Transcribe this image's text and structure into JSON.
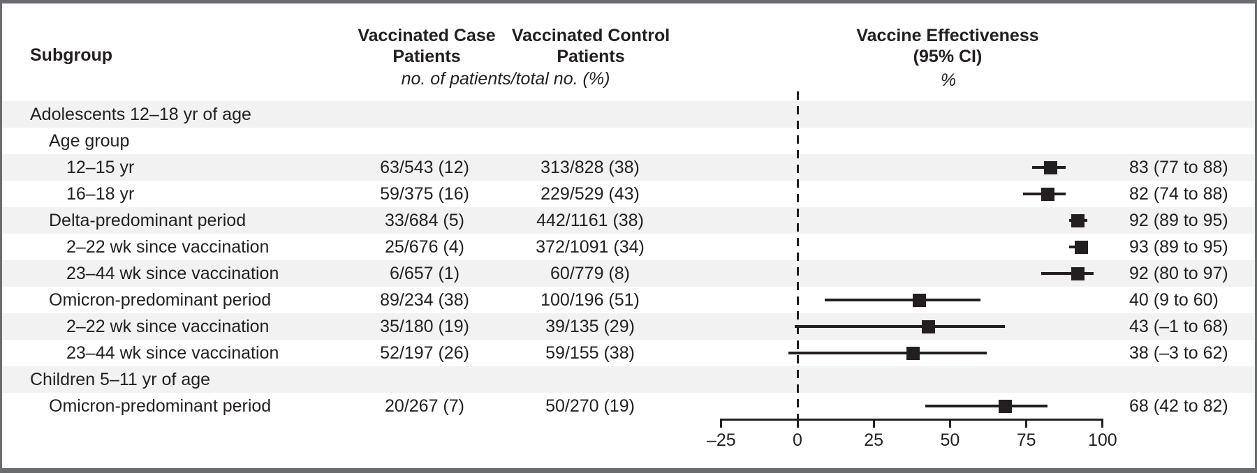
{
  "header": {
    "subgroup": "Subgroup",
    "case_col_line1": "Vaccinated Case",
    "case_col_line2": "Patients",
    "control_col_line1": "Vaccinated Control",
    "control_col_line2": "Patients",
    "ve_col_line1": "Vaccine Effectiveness",
    "ve_col_line2": "(95% CI)",
    "counts_unit_note": "no. of patients/total no. (%)",
    "ve_unit_note": "%"
  },
  "colors": {
    "text": "#231f20",
    "marker": "#231f20",
    "stripe": "#f2f2f2",
    "frame_border": "#6a6b6e",
    "background": "#ffffff"
  },
  "chart_data": {
    "type": "forest",
    "title": "Vaccine Effectiveness (95% CI)",
    "x_unit": "%",
    "xlim": [
      -25,
      100
    ],
    "ticks": [
      -25,
      0,
      25,
      50,
      75,
      100
    ],
    "tick_labels": [
      "–25",
      "0",
      "25",
      "50",
      "75",
      "100"
    ],
    "reference_line_x": 0,
    "grid": false,
    "rows": [
      {
        "label": "Adolescents 12–18 yr of age",
        "indent": 0,
        "shaded": true,
        "case": null,
        "control": null,
        "ve": null,
        "ci_low": null,
        "ci_high": null,
        "ci_text": null
      },
      {
        "label": "Age group",
        "indent": 1,
        "shaded": false,
        "case": null,
        "control": null,
        "ve": null,
        "ci_low": null,
        "ci_high": null,
        "ci_text": null
      },
      {
        "label": "12–15 yr",
        "indent": 2,
        "shaded": true,
        "case": "63/543 (12)",
        "control": "313/828 (38)",
        "ve": 83,
        "ci_low": 77,
        "ci_high": 88,
        "ci_text": "83 (77 to 88)"
      },
      {
        "label": "16–18 yr",
        "indent": 2,
        "shaded": false,
        "case": "59/375 (16)",
        "control": "229/529 (43)",
        "ve": 82,
        "ci_low": 74,
        "ci_high": 88,
        "ci_text": "82 (74 to 88)"
      },
      {
        "label": "Delta-predominant period",
        "indent": 1,
        "shaded": true,
        "case": "33/684 (5)",
        "control": "442/1161 (38)",
        "ve": 92,
        "ci_low": 89,
        "ci_high": 95,
        "ci_text": "92 (89 to 95)"
      },
      {
        "label": "2–22 wk since vaccination",
        "indent": 2,
        "shaded": false,
        "case": "25/676 (4)",
        "control": "372/1091 (34)",
        "ve": 93,
        "ci_low": 89,
        "ci_high": 95,
        "ci_text": "93 (89 to 95)"
      },
      {
        "label": "23–44 wk since vaccination",
        "indent": 2,
        "shaded": true,
        "case": "6/657 (1)",
        "control": "60/779 (8)",
        "ve": 92,
        "ci_low": 80,
        "ci_high": 97,
        "ci_text": "92 (80 to 97)"
      },
      {
        "label": "Omicron-predominant period",
        "indent": 1,
        "shaded": false,
        "case": "89/234 (38)",
        "control": "100/196 (51)",
        "ve": 40,
        "ci_low": 9,
        "ci_high": 60,
        "ci_text": "40 (9 to 60)"
      },
      {
        "label": "2–22 wk since vaccination",
        "indent": 2,
        "shaded": true,
        "case": "35/180 (19)",
        "control": "39/135 (29)",
        "ve": 43,
        "ci_low": -1,
        "ci_high": 68,
        "ci_text": "43 (–1 to 68)"
      },
      {
        "label": "23–44 wk since vaccination",
        "indent": 2,
        "shaded": false,
        "case": "52/197 (26)",
        "control": "59/155 (38)",
        "ve": 38,
        "ci_low": -3,
        "ci_high": 62,
        "ci_text": "38 (–3 to 62)"
      },
      {
        "label": "Children 5–11 yr of age",
        "indent": 0,
        "shaded": true,
        "case": null,
        "control": null,
        "ve": null,
        "ci_low": null,
        "ci_high": null,
        "ci_text": null
      },
      {
        "label": "Omicron-predominant period",
        "indent": 1,
        "shaded": false,
        "case": "20/267 (7)",
        "control": "50/270 (19)",
        "ve": 68,
        "ci_low": 42,
        "ci_high": 82,
        "ci_text": "68 (42 to 82)"
      }
    ]
  }
}
